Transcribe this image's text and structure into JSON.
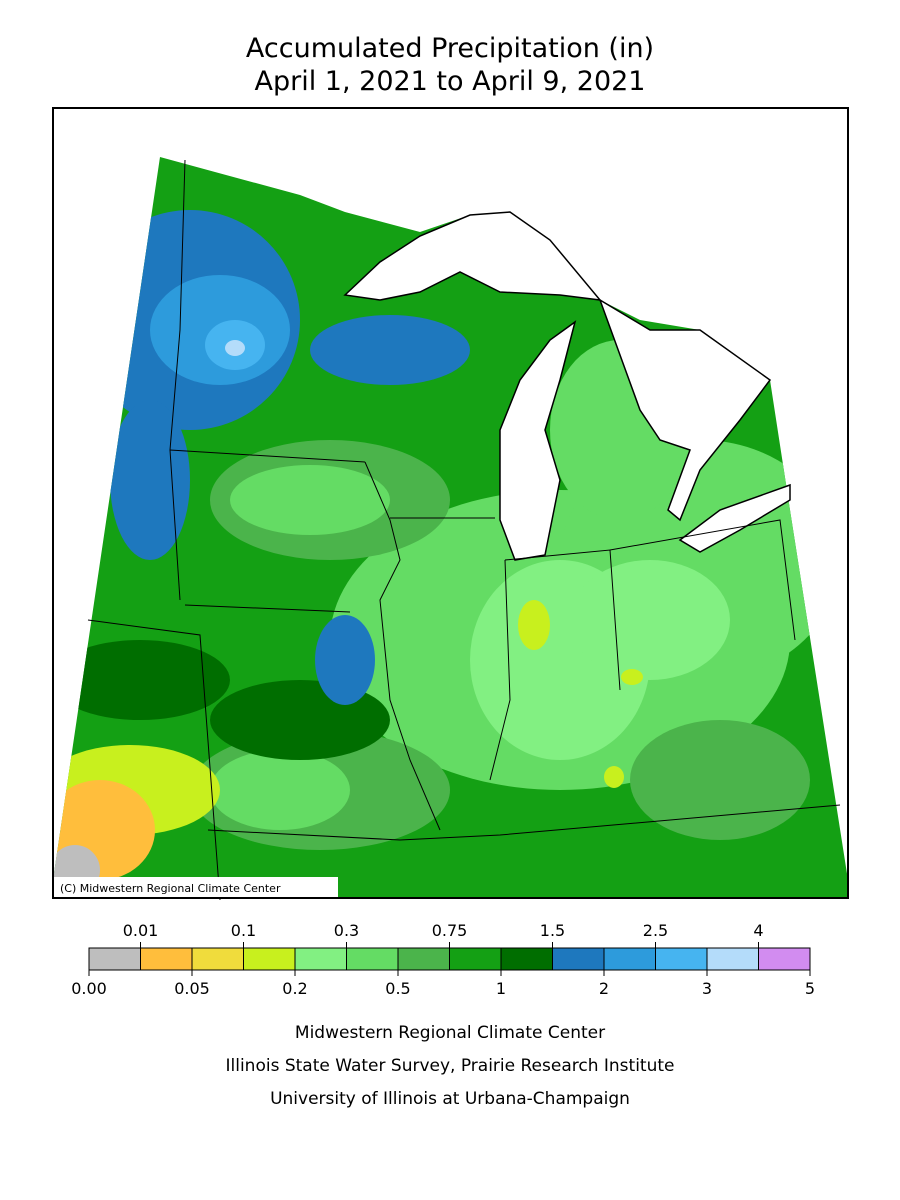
{
  "title": [
    "Accumulated Precipitation (in)",
    "April 1, 2021 to April 9, 2021"
  ],
  "copyright": "(C) Midwestern Regional Climate Center",
  "legend": {
    "colors": [
      "#bebebe",
      "#ffbe3c",
      "#f0dc3c",
      "#c8f01e",
      "#82f082",
      "#64dc64",
      "#4bb44b",
      "#14a014",
      "#006e00",
      "#1e78be",
      "#2d9bdc",
      "#46b4f0",
      "#b4dcfa",
      "#d28cf0"
    ],
    "top_labels": [
      "0.01",
      "0.1",
      "0.3",
      "0.75",
      "1.5",
      "2.5",
      "4"
    ],
    "bottom_labels": [
      "0.00",
      "0.05",
      "0.2",
      "0.5",
      "1",
      "2",
      "3",
      "5"
    ]
  },
  "credits": [
    "Midwestern Regional Climate Center",
    "Illinois State Water Survey, Prairie Research Institute",
    "University of Illinois at Urbana-Champaign"
  ]
}
